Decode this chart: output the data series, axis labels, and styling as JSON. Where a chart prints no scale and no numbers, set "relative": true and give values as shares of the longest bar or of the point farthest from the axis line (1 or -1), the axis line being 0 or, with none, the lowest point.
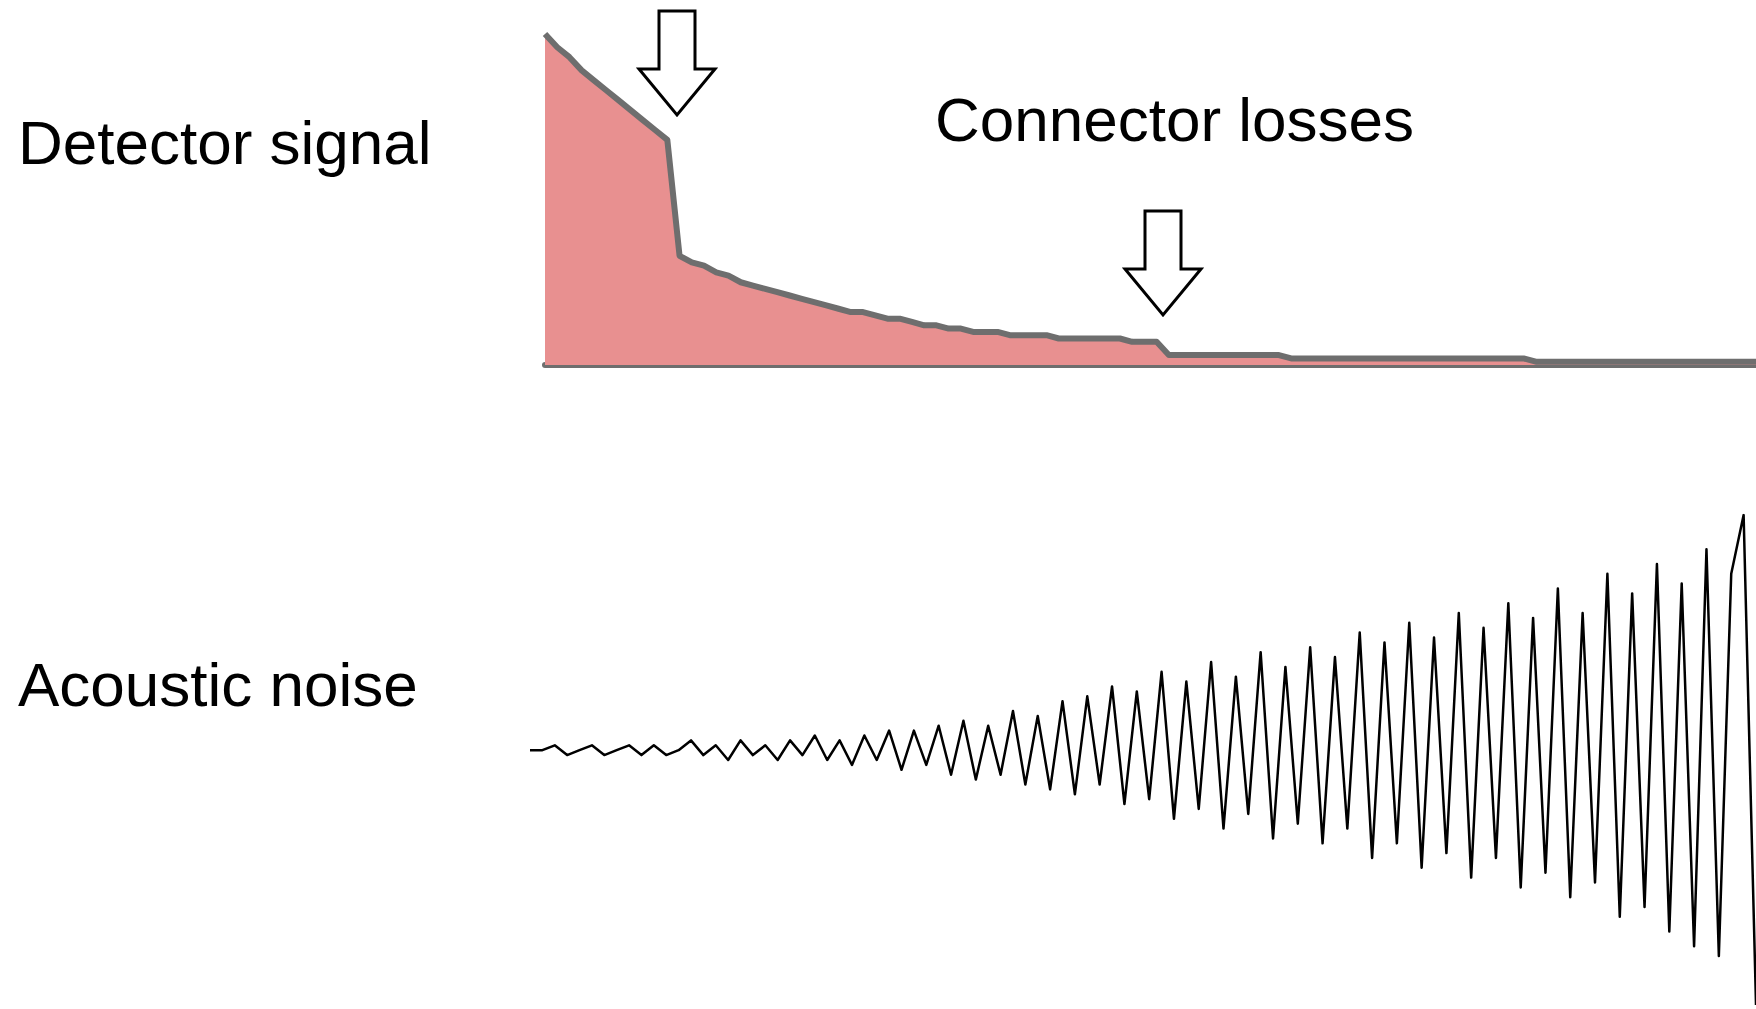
{
  "chart_data": [
    {
      "type": "area",
      "ylabel": "Detector signal",
      "annotations": [
        "Connector losses"
      ],
      "relative": true,
      "color": "#e89090",
      "categories": [
        null,
        null,
        null,
        null,
        null,
        null,
        null,
        null,
        null,
        null,
        null,
        null,
        null,
        null,
        null,
        null,
        null,
        null,
        null,
        null,
        null,
        null,
        null,
        null,
        null,
        null,
        null,
        null,
        null,
        null,
        null,
        null,
        null,
        null,
        null,
        null,
        null,
        null,
        null,
        null,
        null,
        null,
        null,
        null,
        null,
        null,
        null,
        null,
        null,
        null,
        null,
        null,
        null,
        null,
        null,
        null,
        null,
        null,
        null,
        null,
        null,
        null,
        null,
        null,
        null,
        null,
        null,
        null,
        null,
        null,
        null,
        null,
        null,
        null,
        null,
        null,
        null,
        null,
        null,
        null,
        null,
        null,
        null,
        null,
        null,
        null,
        null,
        null,
        null,
        null,
        null,
        null,
        null,
        null,
        null,
        null,
        null,
        null,
        null,
        null
      ],
      "values": [
        1.0,
        0.96,
        0.93,
        0.89,
        0.86,
        0.83,
        0.8,
        0.77,
        0.74,
        0.71,
        0.68,
        0.33,
        0.31,
        0.3,
        0.28,
        0.27,
        0.25,
        0.24,
        0.23,
        0.22,
        0.21,
        0.2,
        0.19,
        0.18,
        0.17,
        0.16,
        0.16,
        0.15,
        0.14,
        0.14,
        0.13,
        0.12,
        0.12,
        0.11,
        0.11,
        0.1,
        0.1,
        0.1,
        0.09,
        0.09,
        0.09,
        0.09,
        0.08,
        0.08,
        0.08,
        0.08,
        0.08,
        0.08,
        0.07,
        0.07,
        0.07,
        0.03,
        0.03,
        0.03,
        0.03,
        0.03,
        0.03,
        0.03,
        0.03,
        0.03,
        0.03,
        0.02,
        0.02,
        0.02,
        0.02,
        0.02,
        0.02,
        0.02,
        0.02,
        0.02,
        0.02,
        0.02,
        0.02,
        0.02,
        0.02,
        0.02,
        0.02,
        0.02,
        0.02,
        0.02,
        0.02,
        0.01,
        0.01,
        0.01,
        0.01,
        0.01,
        0.01,
        0.01,
        0.01,
        0.01,
        0.01,
        0.01,
        0.01,
        0.01,
        0.01,
        0.01,
        0.01,
        0.01,
        0.01,
        0.01
      ]
    },
    {
      "type": "line",
      "ylabel": "Acoustic noise",
      "relative": true,
      "color": "#000000",
      "categories": [
        null,
        null,
        null,
        null,
        null,
        null,
        null,
        null,
        null,
        null,
        null,
        null,
        null,
        null,
        null,
        null,
        null,
        null,
        null,
        null,
        null,
        null,
        null,
        null,
        null,
        null,
        null,
        null,
        null,
        null,
        null,
        null,
        null,
        null,
        null,
        null,
        null,
        null,
        null,
        null,
        null,
        null,
        null,
        null,
        null,
        null,
        null,
        null,
        null,
        null,
        null,
        null,
        null,
        null,
        null,
        null,
        null,
        null,
        null,
        null,
        null,
        null,
        null,
        null,
        null,
        null,
        null,
        null,
        null,
        null,
        null,
        null,
        null,
        null,
        null,
        null,
        null,
        null,
        null,
        null,
        null,
        null,
        null,
        null,
        null,
        null,
        null,
        null,
        null,
        null,
        null,
        null,
        null,
        null,
        null,
        null,
        null,
        null,
        null,
        null
      ],
      "values": [
        0.52,
        0.52,
        0.53,
        0.51,
        0.52,
        0.53,
        0.51,
        0.52,
        0.53,
        0.51,
        0.53,
        0.51,
        0.52,
        0.54,
        0.51,
        0.53,
        0.5,
        0.54,
        0.51,
        0.53,
        0.5,
        0.54,
        0.51,
        0.55,
        0.5,
        0.54,
        0.49,
        0.55,
        0.5,
        0.56,
        0.48,
        0.56,
        0.49,
        0.57,
        0.47,
        0.58,
        0.46,
        0.57,
        0.47,
        0.6,
        0.45,
        0.59,
        0.44,
        0.62,
        0.43,
        0.63,
        0.45,
        0.65,
        0.41,
        0.64,
        0.42,
        0.68,
        0.38,
        0.66,
        0.4,
        0.7,
        0.36,
        0.67,
        0.39,
        0.72,
        0.34,
        0.69,
        0.37,
        0.73,
        0.33,
        0.71,
        0.36,
        0.76,
        0.3,
        0.74,
        0.33,
        0.78,
        0.28,
        0.75,
        0.31,
        0.8,
        0.26,
        0.77,
        0.3,
        0.82,
        0.24,
        0.79,
        0.27,
        0.85,
        0.22,
        0.8,
        0.25,
        0.88,
        0.18,
        0.84,
        0.2,
        0.9,
        0.15,
        0.86,
        0.12,
        0.93,
        0.1,
        0.88,
        1.0,
        0.0
      ]
    }
  ]
}
